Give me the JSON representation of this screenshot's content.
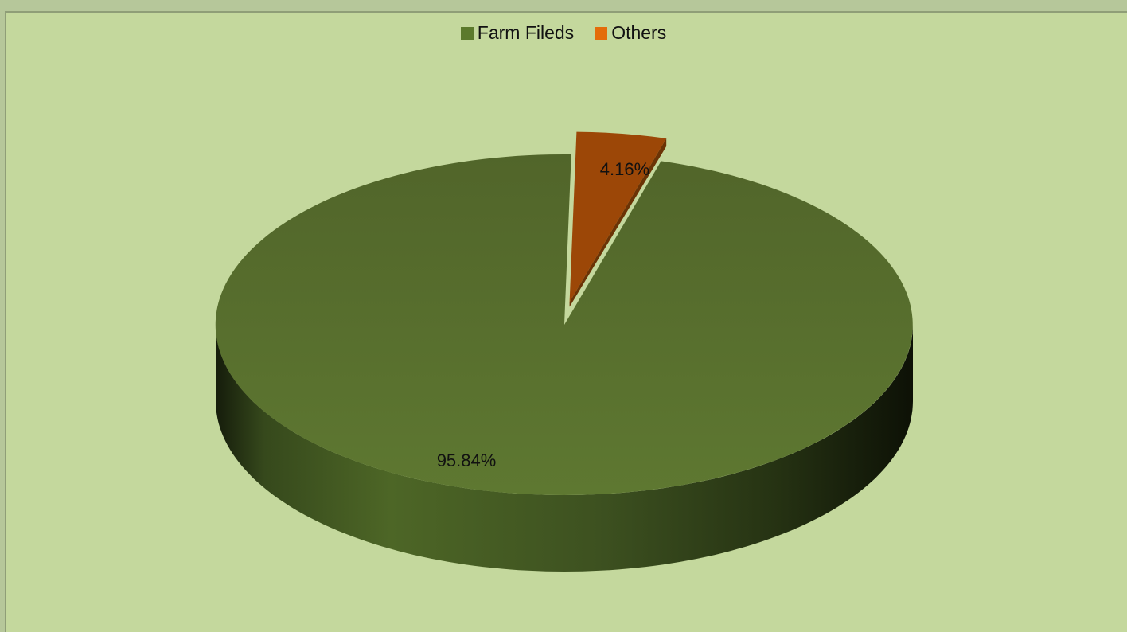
{
  "chart_data": {
    "type": "pie",
    "title": "",
    "categories": [
      "Farm Fileds",
      "Others"
    ],
    "values": [
      95.84,
      4.16
    ],
    "labels": [
      "95.84%",
      "4.16%"
    ],
    "colors": [
      "#5b7a2c",
      "#e46c0a"
    ],
    "top_colors": [
      "#5b7a2c",
      "#9c4707"
    ],
    "side_colors": [
      "#3e5420",
      "#6b3305"
    ],
    "legend_position": "top",
    "three_d": true,
    "exploded": [
      "Others"
    ]
  }
}
